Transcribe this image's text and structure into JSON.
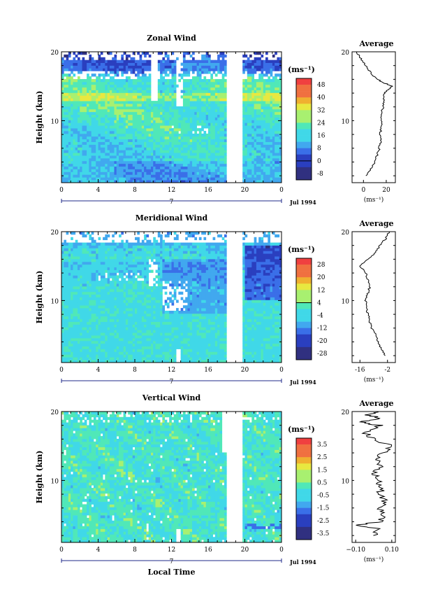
{
  "x_axis": {
    "ticks": [
      "0",
      "4",
      "8",
      "12",
      "16",
      "20",
      "0"
    ],
    "day_label": "7",
    "date_label": "Jul 1994",
    "xlabel": "Local Time"
  },
  "y_axis": {
    "label": "Height (km)",
    "ticks": [
      "10",
      "20"
    ]
  },
  "unit_label": "(ms⁻¹)",
  "chart_data": [
    {
      "type": "heatmap",
      "title": "Zonal Wind",
      "ylabel": "Height (km)",
      "xlabel": "",
      "xlim": [
        0,
        24
      ],
      "ylim": [
        1,
        20
      ],
      "colorbar": {
        "label": "(ms⁻¹)",
        "ticks": [
          "48",
          "40",
          "32",
          "24",
          "16",
          "8",
          "0",
          "-8"
        ],
        "range": [
          -8,
          52
        ]
      },
      "profile": {
        "title": "Average",
        "xticks": [
          "0",
          "20"
        ],
        "xlim": [
          -10,
          28
        ],
        "unit": "(ms⁻¹)",
        "height": [
          2,
          3,
          4,
          5,
          6,
          7,
          8,
          9,
          10,
          11,
          12,
          13,
          14,
          14.5,
          15,
          15.5,
          16,
          17,
          18,
          19,
          20
        ],
        "value": [
          2,
          6,
          10,
          12,
          14,
          15,
          15,
          15,
          16,
          16,
          17,
          18,
          18,
          22,
          25,
          18,
          12,
          6,
          2,
          -2,
          -6
        ]
      }
    },
    {
      "type": "heatmap",
      "title": "Meridional Wind",
      "ylabel": "Height (km)",
      "xlabel": "",
      "xlim": [
        0,
        24
      ],
      "ylim": [
        1,
        20
      ],
      "colorbar": {
        "label": "(ms⁻¹)",
        "ticks": [
          "28",
          "20",
          "12",
          "4",
          "-4",
          "-12",
          "-20",
          "-28"
        ],
        "range": [
          -32,
          32
        ]
      },
      "profile": {
        "title": "Average",
        "xticks": [
          "-16",
          "-2"
        ],
        "xlim": [
          -20,
          2
        ],
        "unit": "(ms⁻¹)",
        "height": [
          2,
          3,
          4,
          5,
          6,
          7,
          8,
          9,
          10,
          11,
          12,
          13,
          14,
          15,
          16,
          17,
          18,
          19,
          20
        ],
        "value": [
          -3,
          -5,
          -7,
          -8,
          -10,
          -11,
          -12,
          -13,
          -13,
          -12,
          -11,
          -12,
          -13,
          -16,
          -12,
          -8,
          -6,
          -3,
          -1
        ]
      }
    },
    {
      "type": "heatmap",
      "title": "Vertical Wind",
      "ylabel": "Height (km)",
      "xlabel": "Local Time",
      "xlim": [
        0,
        24
      ],
      "ylim": [
        1,
        20
      ],
      "colorbar": {
        "label": "(ms⁻¹)",
        "ticks": [
          "3.5",
          "2.5",
          "1.5",
          "0.5",
          "-0.5",
          "-1.5",
          "-2.5",
          "-3.5"
        ],
        "range": [
          -4,
          4
        ]
      },
      "profile": {
        "title": "Average",
        "xticks": [
          "−0.10",
          "0.10"
        ],
        "xlim": [
          -0.12,
          0.12
        ],
        "unit": "(ms⁻¹)",
        "height": [
          2,
          3,
          3.5,
          4,
          5,
          6,
          7,
          8,
          9,
          10,
          11,
          12,
          13,
          14,
          15,
          16,
          17,
          18,
          18.5,
          19,
          19.5,
          20
        ],
        "value": [
          0.0,
          0.02,
          -0.1,
          0.03,
          0.05,
          0.04,
          0.06,
          0.03,
          0.05,
          0.02,
          0.0,
          0.03,
          0.02,
          0.05,
          0.1,
          0.0,
          -0.05,
          0.03,
          -0.08,
          0.05,
          -0.03,
          0.02
        ]
      }
    }
  ],
  "colors": {
    "scale": [
      "#303080",
      "#2a3fbf",
      "#3a6fe8",
      "#41a8ef",
      "#40d8e8",
      "#50e8b8",
      "#a8f070",
      "#e8e840",
      "#f0b030",
      "#f07040",
      "#f04040"
    ],
    "missing": "#ffffff"
  }
}
